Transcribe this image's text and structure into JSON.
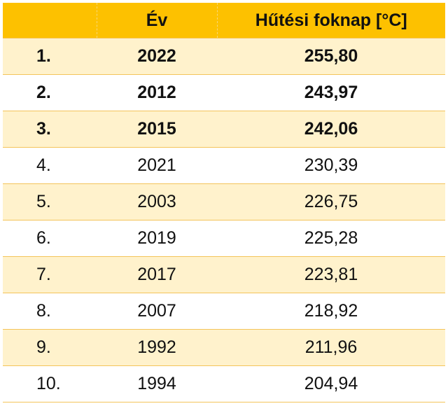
{
  "table": {
    "headers": {
      "rank": "",
      "year": "Év",
      "value": "Hűtési foknap [°C]"
    },
    "rows": [
      {
        "rank": "1.",
        "year": "2022",
        "value": "255,80",
        "highlight": true
      },
      {
        "rank": "2.",
        "year": "2012",
        "value": "243,97",
        "highlight": true
      },
      {
        "rank": "3.",
        "year": "2015",
        "value": "242,06",
        "highlight": true
      },
      {
        "rank": "4.",
        "year": "2021",
        "value": "230,39",
        "highlight": false
      },
      {
        "rank": "5.",
        "year": "2003",
        "value": "226,75",
        "highlight": false
      },
      {
        "rank": "6.",
        "year": "2019",
        "value": "225,28",
        "highlight": false
      },
      {
        "rank": "7.",
        "year": "2017",
        "value": "223,81",
        "highlight": false
      },
      {
        "rank": "8.",
        "year": "2007",
        "value": "218,92",
        "highlight": false
      },
      {
        "rank": "9.",
        "year": "1992",
        "value": "211,96",
        "highlight": false
      },
      {
        "rank": "10.",
        "year": "1994",
        "value": "204,94",
        "highlight": false
      }
    ]
  },
  "colors": {
    "header_bg": "#fdc100",
    "band_bg": "#fff2cc",
    "border": "#f4c45a"
  }
}
